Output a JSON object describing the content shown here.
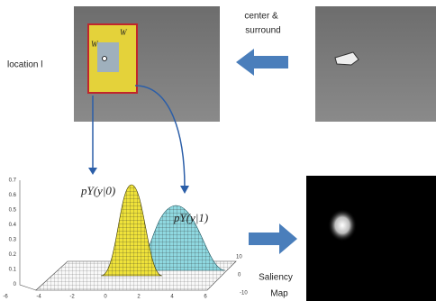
{
  "top": {
    "arrow_label": [
      "center &",
      "surround"
    ],
    "location_label": "location l",
    "window_labels": [
      "W",
      "W"
    ]
  },
  "plot": {
    "labels": [
      "pY(y|0)",
      "pY(y|1)"
    ],
    "z_ticks": [
      "0.7",
      "0.6",
      "0.5",
      "0.4",
      "0.3",
      "0.2",
      "0.1",
      "0"
    ],
    "x_ticks": [
      "-6",
      "-4",
      "-2",
      "0",
      "2",
      "4",
      "6"
    ],
    "y_ticks": [
      "10",
      "0",
      "-10"
    ]
  },
  "output": {
    "label": [
      "Saliency",
      "Map"
    ]
  }
}
